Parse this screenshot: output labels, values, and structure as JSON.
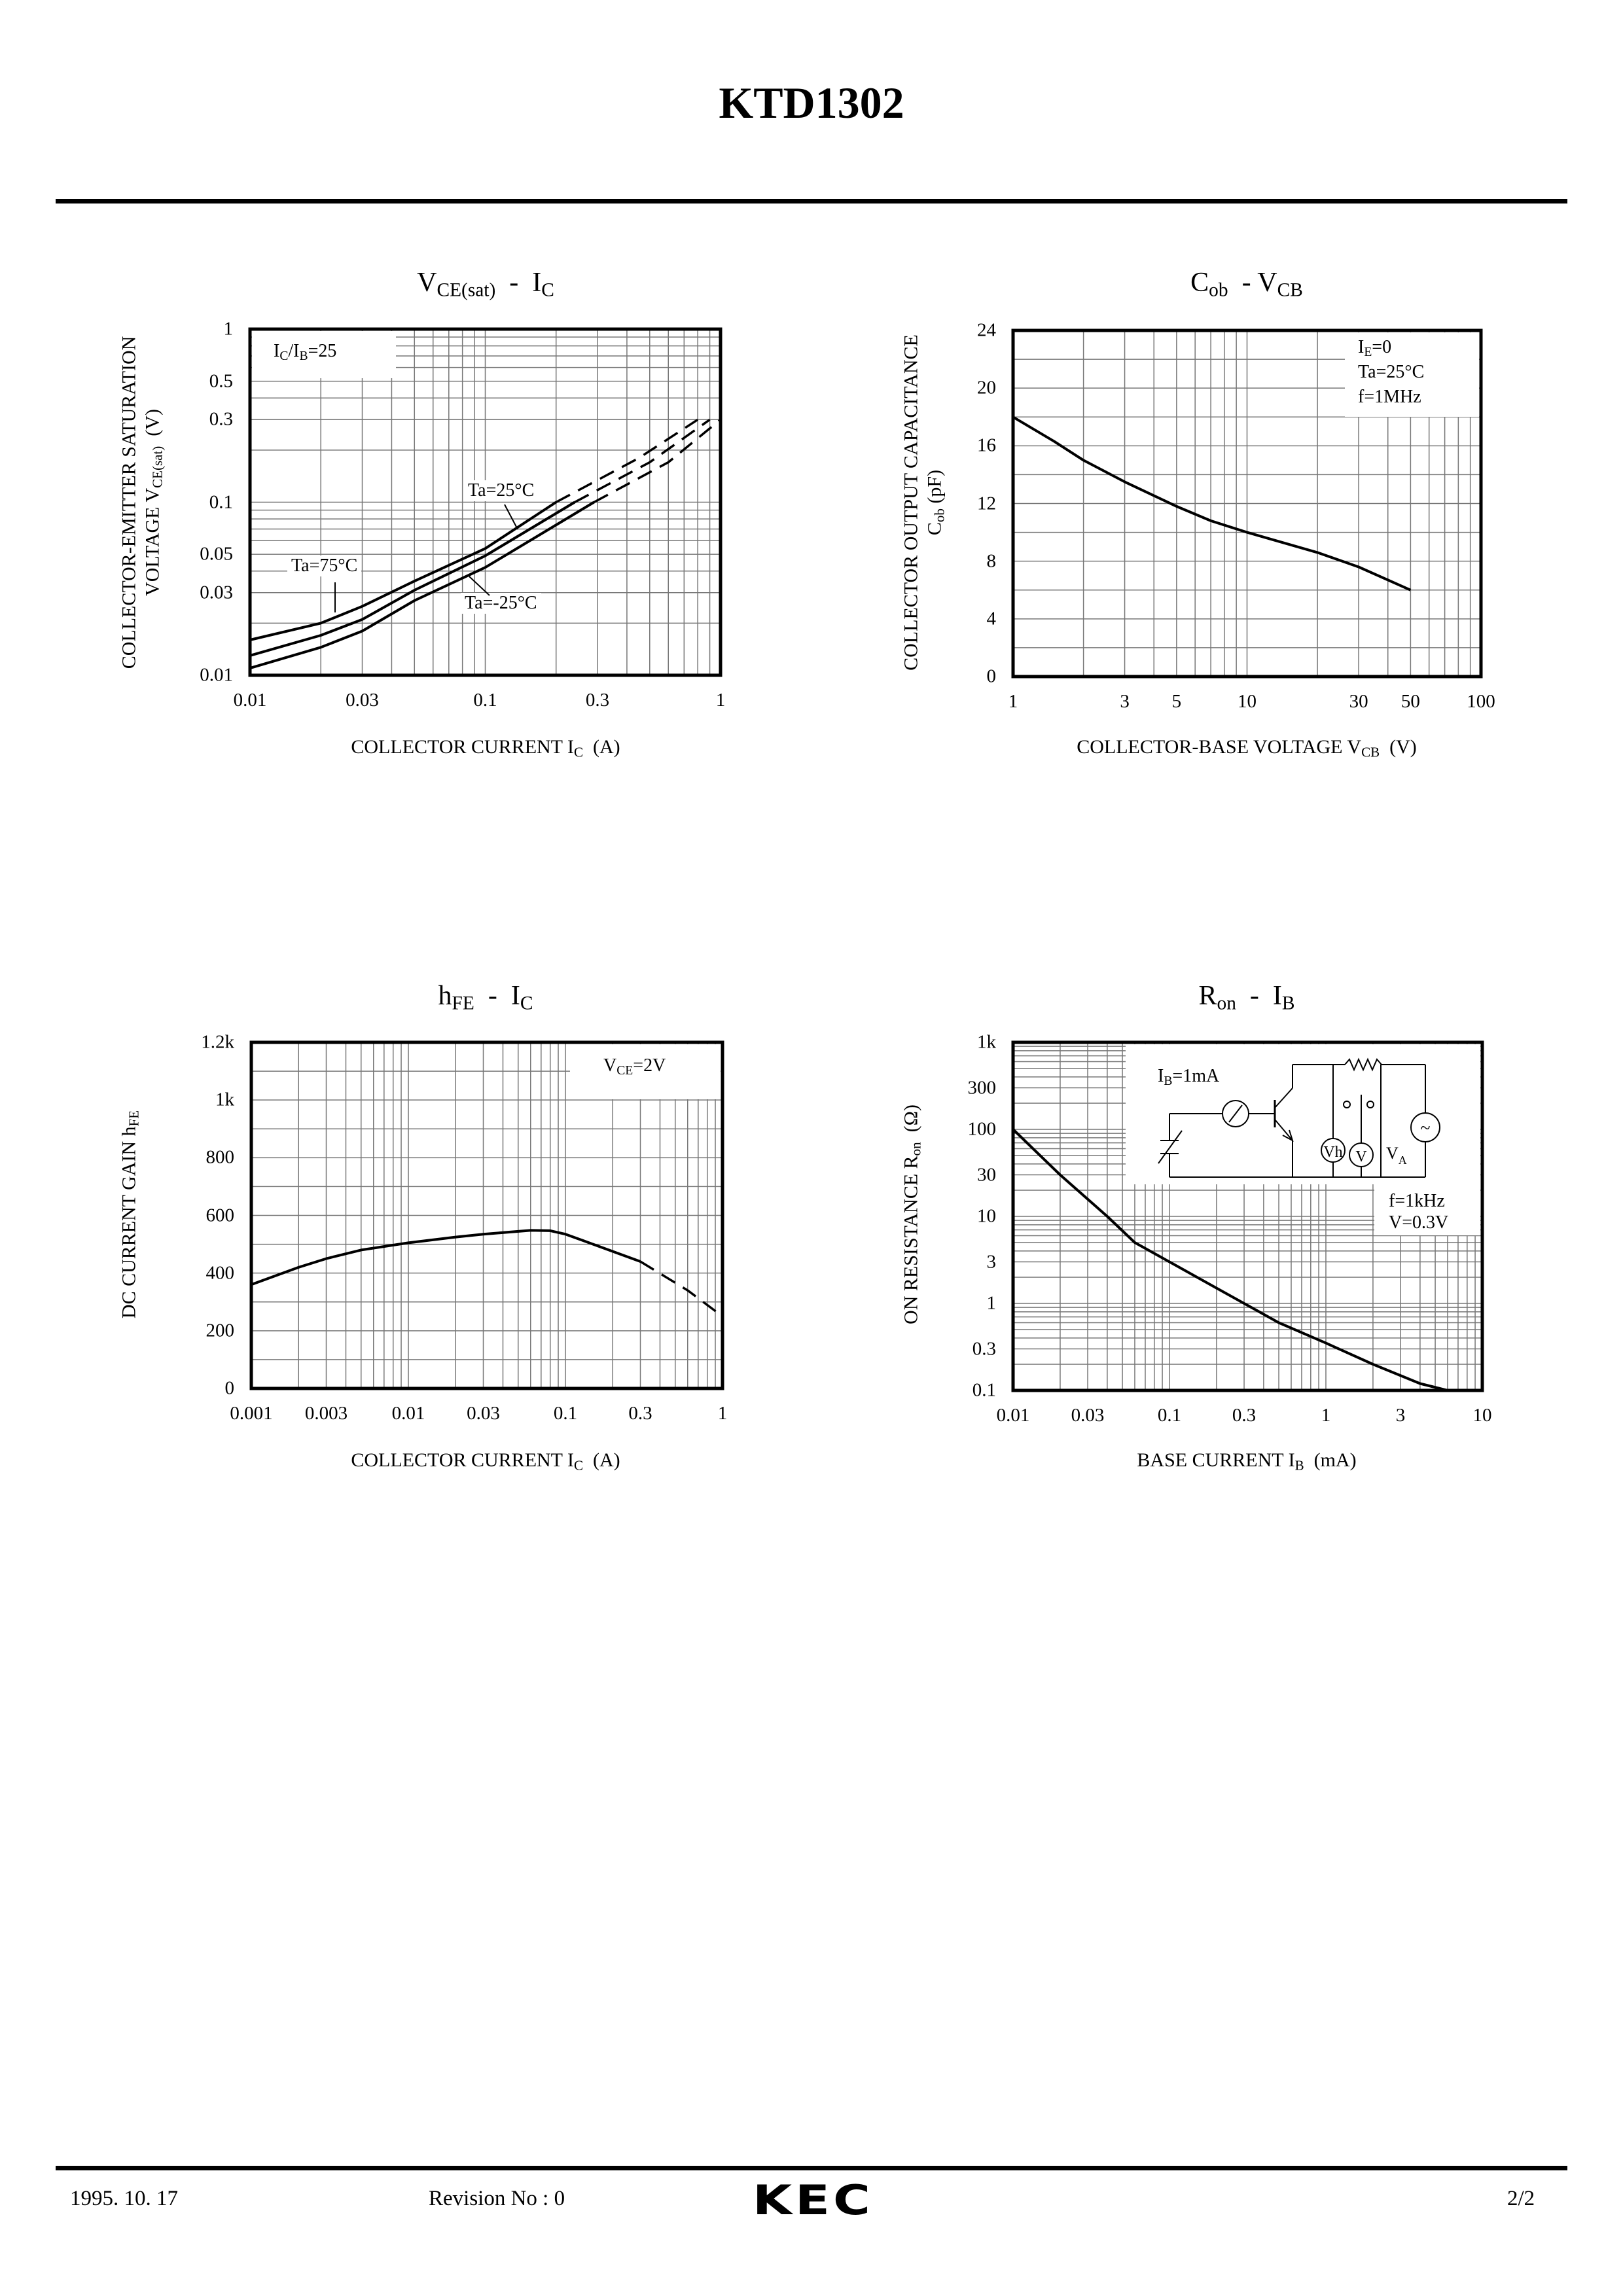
{
  "header": {
    "title": "KTD1302"
  },
  "footer": {
    "date": "1995. 10. 17",
    "revision": "Revision No : 0",
    "logo": "KEC",
    "page": "2/2"
  },
  "chart_data": [
    {
      "type": "line",
      "title": {
        "a": "V",
        "a_sub": "CE(sat)",
        "b": "  -  I",
        "b_sub": "C"
      },
      "xlabel": {
        "a": "COLLECTOR CURRENT I",
        "sub": "C",
        "b": "  (A)"
      },
      "ylabel": {
        "line1": "COLLECTOR-EMITTER SATURATION",
        "a": "VOLTAGE V",
        "sub": "CE(sat)",
        "b": "  (V)"
      },
      "legend": {
        "a": "I",
        "s1": "C",
        "b": "/I",
        "s2": "B",
        "c": "=25"
      },
      "x_axis": {
        "scale": "log",
        "min": 0.01,
        "max": 1,
        "ticks": [
          {
            "v": 0.01,
            "label": "0.01"
          },
          {
            "v": 0.03,
            "label": "0.03"
          },
          {
            "v": 0.1,
            "label": "0.1"
          },
          {
            "v": 0.3,
            "label": "0.3"
          },
          {
            "v": 1,
            "label": "1"
          }
        ]
      },
      "y_axis": {
        "scale": "log",
        "min": 0.01,
        "max": 1,
        "ticks": [
          {
            "v": 0.01,
            "label": "0.01"
          },
          {
            "v": 0.03,
            "label": "0.03"
          },
          {
            "v": 0.05,
            "label": "0.05"
          },
          {
            "v": 0.1,
            "label": "0.1"
          },
          {
            "v": 0.3,
            "label": "0.3"
          },
          {
            "v": 0.5,
            "label": "0.5"
          },
          {
            "v": 1,
            "label": "1"
          }
        ]
      },
      "grid": true,
      "series": [
        {
          "name": "Ta=75°C",
          "points": [
            [
              0.01,
              0.016
            ],
            [
              0.02,
              0.02
            ],
            [
              0.03,
              0.025
            ],
            [
              0.05,
              0.035
            ],
            [
              0.1,
              0.054
            ],
            [
              0.2,
              0.1
            ]
          ],
          "dashed": [
            [
              0.2,
              0.1
            ],
            [
              0.45,
              0.18
            ],
            [
              0.8,
              0.3
            ]
          ]
        },
        {
          "name": "Ta=25°C",
          "points": [
            [
              0.01,
              0.013
            ],
            [
              0.02,
              0.017
            ],
            [
              0.03,
              0.021
            ],
            [
              0.05,
              0.031
            ],
            [
              0.1,
              0.049
            ],
            [
              0.24,
              0.1
            ]
          ],
          "dashed": [
            [
              0.24,
              0.1
            ],
            [
              0.5,
              0.17
            ],
            [
              0.9,
              0.3
            ]
          ]
        },
        {
          "name": "Ta=-25°C",
          "points": [
            [
              0.01,
              0.011
            ],
            [
              0.02,
              0.0145
            ],
            [
              0.03,
              0.018
            ],
            [
              0.05,
              0.027
            ],
            [
              0.1,
              0.042
            ],
            [
              0.29,
              0.1
            ]
          ],
          "dashed": [
            [
              0.29,
              0.1
            ],
            [
              0.6,
              0.17
            ],
            [
              1,
              0.3
            ]
          ]
        }
      ]
    },
    {
      "type": "line",
      "title": {
        "a": "C",
        "a_sub": "ob",
        "b": "  - V",
        "b_sub": "CB"
      },
      "xlabel": {
        "a": "COLLECTOR-BASE VOLTAGE V",
        "sub": "CB",
        "b": "  (V)"
      },
      "ylabel": {
        "line1": "COLLECTOR OUTPUT CAPACITANCE",
        "a": "C",
        "sub": "ob",
        "b": " (pF)"
      },
      "legend": {
        "l1a": "I",
        "l1s": "E",
        "l1b": "=0",
        "l2": "Ta=25°C",
        "l3": "f=1MHz"
      },
      "x_axis": {
        "scale": "log",
        "min": 1,
        "max": 100,
        "ticks": [
          {
            "v": 1,
            "label": "1"
          },
          {
            "v": 3,
            "label": "3"
          },
          {
            "v": 5,
            "label": "5"
          },
          {
            "v": 10,
            "label": "10"
          },
          {
            "v": 30,
            "label": "30"
          },
          {
            "v": 50,
            "label": "50"
          },
          {
            "v": 100,
            "label": "100"
          }
        ]
      },
      "y_axis": {
        "scale": "linear",
        "min": 0,
        "max": 24,
        "grid_step": 2,
        "ticks": [
          {
            "v": 0,
            "label": "0"
          },
          {
            "v": 4,
            "label": "4"
          },
          {
            "v": 8,
            "label": "8"
          },
          {
            "v": 12,
            "label": "12"
          },
          {
            "v": 16,
            "label": "16"
          },
          {
            "v": 20,
            "label": "20"
          },
          {
            "v": 24,
            "label": "24"
          }
        ]
      },
      "grid": true,
      "series": [
        {
          "name": "Cob",
          "points": [
            [
              1,
              18
            ],
            [
              1.5,
              16.3
            ],
            [
              2,
              15
            ],
            [
              3,
              13.5
            ],
            [
              5,
              11.8
            ],
            [
              7,
              10.8
            ],
            [
              10,
              10
            ],
            [
              20,
              8.6
            ],
            [
              30,
              7.6
            ],
            [
              50,
              6
            ]
          ]
        }
      ]
    },
    {
      "type": "line",
      "title": {
        "a": "h",
        "a_sub": "FE",
        "b": "  -  I",
        "b_sub": "C"
      },
      "xlabel": {
        "a": "COLLECTOR CURRENT I",
        "sub": "C",
        "b": "  (A)"
      },
      "ylabel": {
        "a": "DC CURRENT GAIN h",
        "sub": "FE"
      },
      "legend": {
        "a": "V",
        "sub": "CE",
        "b": "=2V"
      },
      "x_axis": {
        "scale": "log",
        "min": 0.001,
        "max": 1,
        "ticks": [
          {
            "v": 0.001,
            "label": "0.001"
          },
          {
            "v": 0.003,
            "label": "0.003"
          },
          {
            "v": 0.01,
            "label": "0.01"
          },
          {
            "v": 0.03,
            "label": "0.03"
          },
          {
            "v": 0.1,
            "label": "0.1"
          },
          {
            "v": 0.3,
            "label": "0.3"
          },
          {
            "v": 1,
            "label": "1"
          }
        ]
      },
      "y_axis": {
        "scale": "linear",
        "min": 0,
        "max": 1200,
        "grid_step": 100,
        "ticks": [
          {
            "v": 0,
            "label": "0"
          },
          {
            "v": 200,
            "label": "200"
          },
          {
            "v": 400,
            "label": "400"
          },
          {
            "v": 600,
            "label": "600"
          },
          {
            "v": 800,
            "label": "800"
          },
          {
            "v": 1000,
            "label": "1k"
          },
          {
            "v": 1200,
            "label": "1.2k"
          }
        ]
      },
      "grid": true,
      "series": [
        {
          "name": "hFE",
          "points": [
            [
              0.001,
              360
            ],
            [
              0.002,
              420
            ],
            [
              0.003,
              450
            ],
            [
              0.005,
              480
            ],
            [
              0.01,
              505
            ],
            [
              0.02,
              525
            ],
            [
              0.03,
              535
            ],
            [
              0.06,
              548
            ],
            [
              0.08,
              547
            ],
            [
              0.1,
              535
            ],
            [
              0.15,
              500
            ],
            [
              0.3,
              440
            ]
          ],
          "dashed": [
            [
              0.3,
              440
            ],
            [
              0.6,
              340
            ],
            [
              1,
              250
            ]
          ]
        }
      ]
    },
    {
      "type": "line",
      "title": {
        "a": "R",
        "a_sub": "on",
        "b": "  -  I",
        "b_sub": "B"
      },
      "xlabel": {
        "a": "BASE CURRENT I",
        "sub": "B",
        "b": "  (mA)"
      },
      "ylabel": {
        "a": "ON RESISTANCE R",
        "sub": "on",
        "b": "  (Ω)"
      },
      "legend": {
        "a": "I",
        "sub": "B",
        "b": "=1mA",
        "f": "f=1kHz",
        "v": "V=0.3V"
      },
      "circuit": {
        "vh": "Vh",
        "v": "V",
        "va": "V",
        "va_sub": "A",
        "ac": "~"
      },
      "x_axis": {
        "scale": "log",
        "min": 0.01,
        "max": 10,
        "ticks": [
          {
            "v": 0.01,
            "label": "0.01"
          },
          {
            "v": 0.03,
            "label": "0.03"
          },
          {
            "v": 0.1,
            "label": "0.1"
          },
          {
            "v": 0.3,
            "label": "0.3"
          },
          {
            "v": 1,
            "label": "1"
          },
          {
            "v": 3,
            "label": "3"
          },
          {
            "v": 10,
            "label": "10"
          }
        ]
      },
      "y_axis": {
        "scale": "log",
        "min": 0.1,
        "max": 1000,
        "ticks": [
          {
            "v": 0.1,
            "label": "0.1"
          },
          {
            "v": 0.3,
            "label": "0.3"
          },
          {
            "v": 1,
            "label": "1"
          },
          {
            "v": 3,
            "label": "3"
          },
          {
            "v": 10,
            "label": "10"
          },
          {
            "v": 30,
            "label": "30"
          },
          {
            "v": 100,
            "label": "100"
          },
          {
            "v": 300,
            "label": "300"
          },
          {
            "v": 1000,
            "label": "1k"
          }
        ]
      },
      "grid": true,
      "series": [
        {
          "name": "Ron",
          "points": [
            [
              0.01,
              100
            ],
            [
              0.02,
              30
            ],
            [
              0.04,
              10
            ],
            [
              0.06,
              5
            ],
            [
              0.1,
              3
            ],
            [
              0.2,
              1.5
            ],
            [
              0.3,
              1
            ],
            [
              0.5,
              0.6
            ],
            [
              1,
              0.35
            ],
            [
              2,
              0.2
            ],
            [
              4,
              0.12
            ],
            [
              6,
              0.1
            ]
          ]
        }
      ]
    }
  ]
}
